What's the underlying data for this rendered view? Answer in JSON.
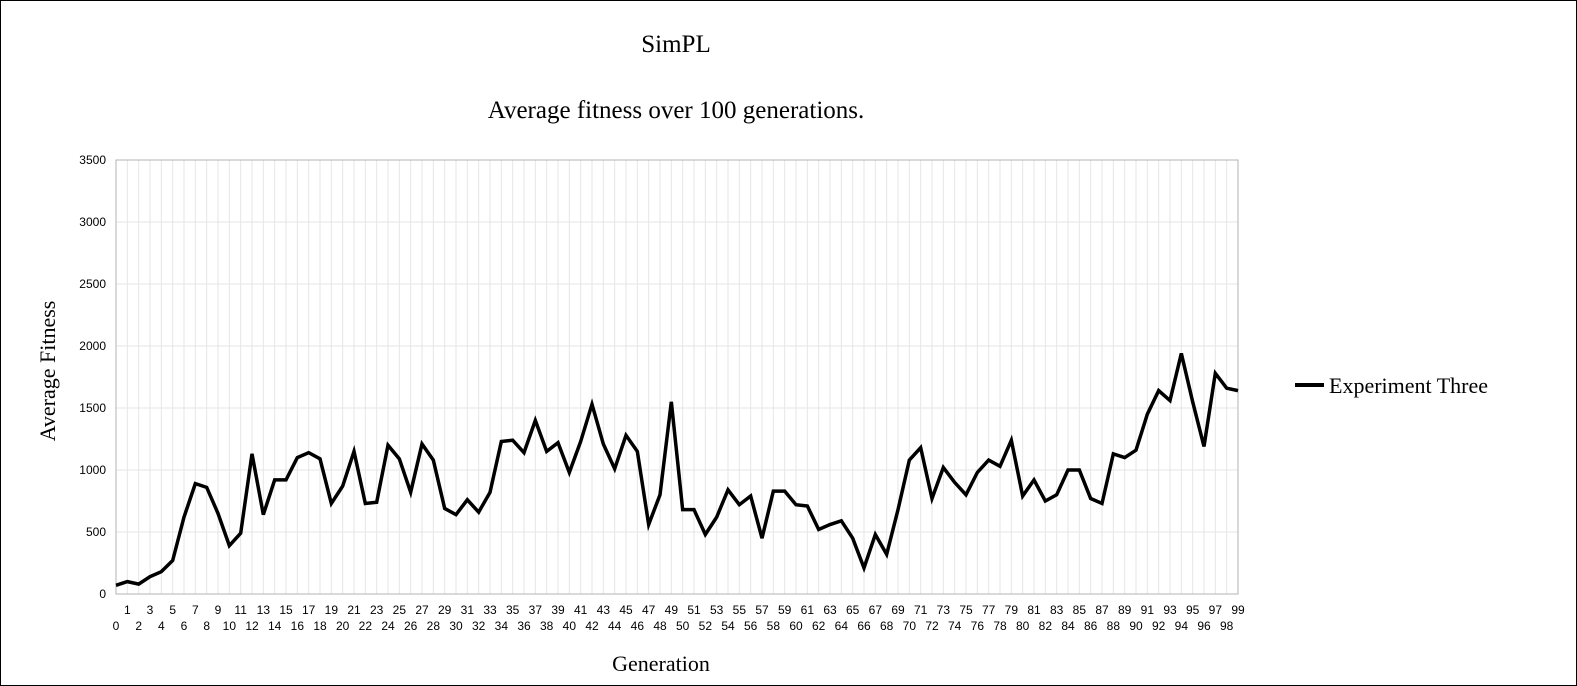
{
  "chart_data": {
    "type": "line",
    "title": "SimPL",
    "subtitle": "Average fitness over 100 generations.",
    "xlabel": "Generation",
    "ylabel": "Average Fitness",
    "ylim": [
      0,
      3500
    ],
    "yticks": [
      0,
      500,
      1000,
      1500,
      2000,
      2500,
      3000,
      3500
    ],
    "x": [
      0,
      1,
      2,
      3,
      4,
      5,
      6,
      7,
      8,
      9,
      10,
      11,
      12,
      13,
      14,
      15,
      16,
      17,
      18,
      19,
      20,
      21,
      22,
      23,
      24,
      25,
      26,
      27,
      28,
      29,
      30,
      31,
      32,
      33,
      34,
      35,
      36,
      37,
      38,
      39,
      40,
      41,
      42,
      43,
      44,
      45,
      46,
      47,
      48,
      49,
      50,
      51,
      52,
      53,
      54,
      55,
      56,
      57,
      58,
      59,
      60,
      61,
      62,
      63,
      64,
      65,
      66,
      67,
      68,
      69,
      70,
      71,
      72,
      73,
      74,
      75,
      76,
      77,
      78,
      79,
      80,
      81,
      82,
      83,
      84,
      85,
      86,
      87,
      88,
      89,
      90,
      91,
      92,
      93,
      94,
      95,
      96,
      97,
      98,
      99
    ],
    "grid": true,
    "legend_position": "right",
    "series": [
      {
        "name": "Experiment Three",
        "color": "#000000",
        "values": [
          70,
          100,
          80,
          140,
          180,
          270,
          620,
          890,
          860,
          650,
          390,
          490,
          1130,
          640,
          920,
          920,
          1100,
          1140,
          1090,
          730,
          870,
          1150,
          730,
          740,
          1200,
          1090,
          820,
          1210,
          1080,
          690,
          640,
          760,
          660,
          820,
          1230,
          1240,
          1140,
          1400,
          1150,
          1220,
          980,
          1230,
          1530,
          1210,
          1010,
          1280,
          1150,
          560,
          800,
          1550,
          680,
          680,
          480,
          620,
          840,
          720,
          790,
          450,
          830,
          830,
          720,
          710,
          520,
          560,
          590,
          450,
          210,
          480,
          320,
          680,
          1080,
          1180,
          770,
          1020,
          900,
          800,
          980,
          1080,
          1030,
          1240,
          790,
          920,
          750,
          800,
          1000,
          1000,
          770,
          730,
          1130,
          1100,
          1160,
          1450,
          1640,
          1560,
          1940,
          1550,
          1190,
          1780,
          1660,
          1640
        ]
      }
    ]
  }
}
